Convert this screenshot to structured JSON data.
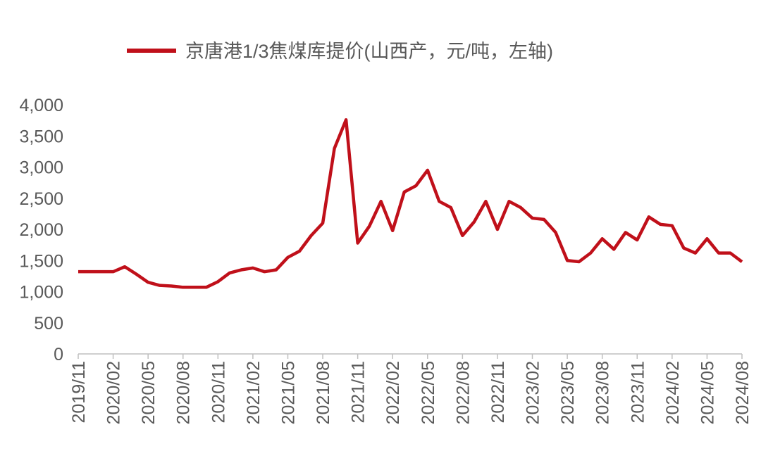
{
  "chart_data": {
    "type": "line",
    "legend_label": "京唐港1/3焦煤库提价(山西产，元/吨，左轴)",
    "categories": [
      "2019/11",
      null,
      null,
      "2020/02",
      null,
      null,
      "2020/05",
      null,
      null,
      "2020/08",
      null,
      null,
      "2020/11",
      null,
      null,
      "2021/02",
      null,
      null,
      "2021/05",
      null,
      null,
      "2021/08",
      null,
      null,
      "2021/11",
      null,
      null,
      "2022/02",
      null,
      null,
      "2022/05",
      null,
      null,
      "2022/08",
      null,
      null,
      "2022/11",
      null,
      null,
      "2023/02",
      null,
      null,
      "2023/05",
      null,
      null,
      "2023/08",
      null,
      null,
      "2023/11",
      null,
      null,
      "2024/02",
      null,
      null,
      "2024/05",
      null,
      null,
      "2024/08"
    ],
    "values": [
      1320,
      1320,
      1320,
      1320,
      1400,
      1280,
      1150,
      1100,
      1090,
      1070,
      1070,
      1070,
      1160,
      1300,
      1350,
      1380,
      1320,
      1350,
      1550,
      1650,
      1900,
      2100,
      3300,
      3760,
      1780,
      2050,
      2450,
      1980,
      2600,
      2700,
      2950,
      2450,
      2350,
      1900,
      2120,
      2450,
      2000,
      2450,
      2350,
      2180,
      2160,
      1950,
      1500,
      1480,
      1620,
      1850,
      1680,
      1950,
      1830,
      2200,
      2080,
      2060,
      1700,
      1620,
      1850,
      1620,
      1620,
      1480
    ],
    "color": "#c0101a",
    "ylim": [
      0,
      4000
    ],
    "yticks": [
      0,
      500,
      {
        "value": 1000,
        "label": "1,000"
      },
      {
        "value": 1500,
        "label": "1,500"
      },
      {
        "value": 2000,
        "label": "2,000"
      },
      {
        "value": 2500,
        "label": "2,500"
      },
      {
        "value": 3000,
        "label": "3,000"
      },
      {
        "value": 3500,
        "label": "3,500"
      },
      {
        "value": 4000,
        "label": "4,000"
      }
    ],
    "grid": false,
    "legend": "top"
  }
}
